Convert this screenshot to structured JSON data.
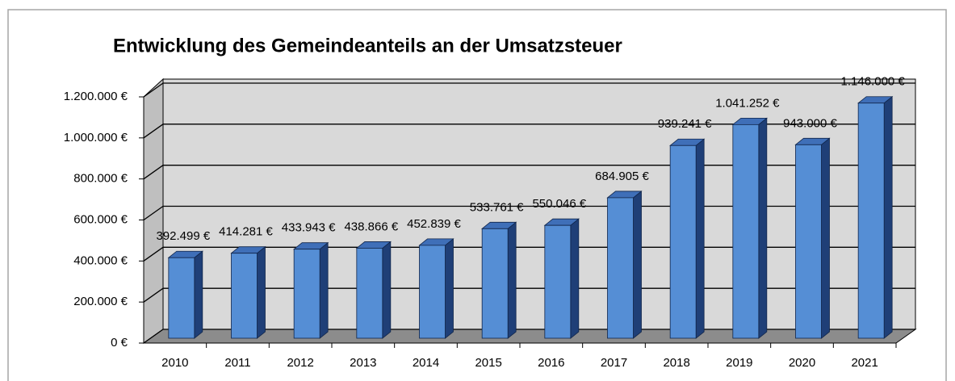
{
  "chart_data": {
    "type": "bar",
    "title": "Entwicklung des Gemeindeanteils an der Umsatzsteuer",
    "categories": [
      "2010",
      "2011",
      "2012",
      "2013",
      "2014",
      "2015",
      "2016",
      "2017",
      "2018",
      "2019",
      "2020",
      "2021"
    ],
    "values": [
      392499,
      414281,
      433943,
      438866,
      452839,
      533761,
      550046,
      684905,
      939241,
      1041252,
      943000,
      1146000
    ],
    "value_labels": [
      "392.499 €",
      "414.281 €",
      "433.943 €",
      "438.866 €",
      "452.839 €",
      "533.761 €",
      "550.046 €",
      "684.905 €",
      "939.241 €",
      "1.041.252 €",
      "943.000 €",
      "1.146.000 €"
    ],
    "color": "#558ed5",
    "ylim": [
      0,
      1200000
    ],
    "yticks": [
      {
        "value": 0,
        "label": "0 €"
      },
      {
        "value": 200000,
        "label": "200.000 €"
      },
      {
        "value": 400000,
        "label": "400.000 €"
      },
      {
        "value": 600000,
        "label": "600.000 €"
      },
      {
        "value": 800000,
        "label": "800.000 €"
      },
      {
        "value": 1000000,
        "label": "1.000.000 €"
      },
      {
        "value": 1200000,
        "label": "1.200.000 €"
      }
    ],
    "grid": true
  }
}
